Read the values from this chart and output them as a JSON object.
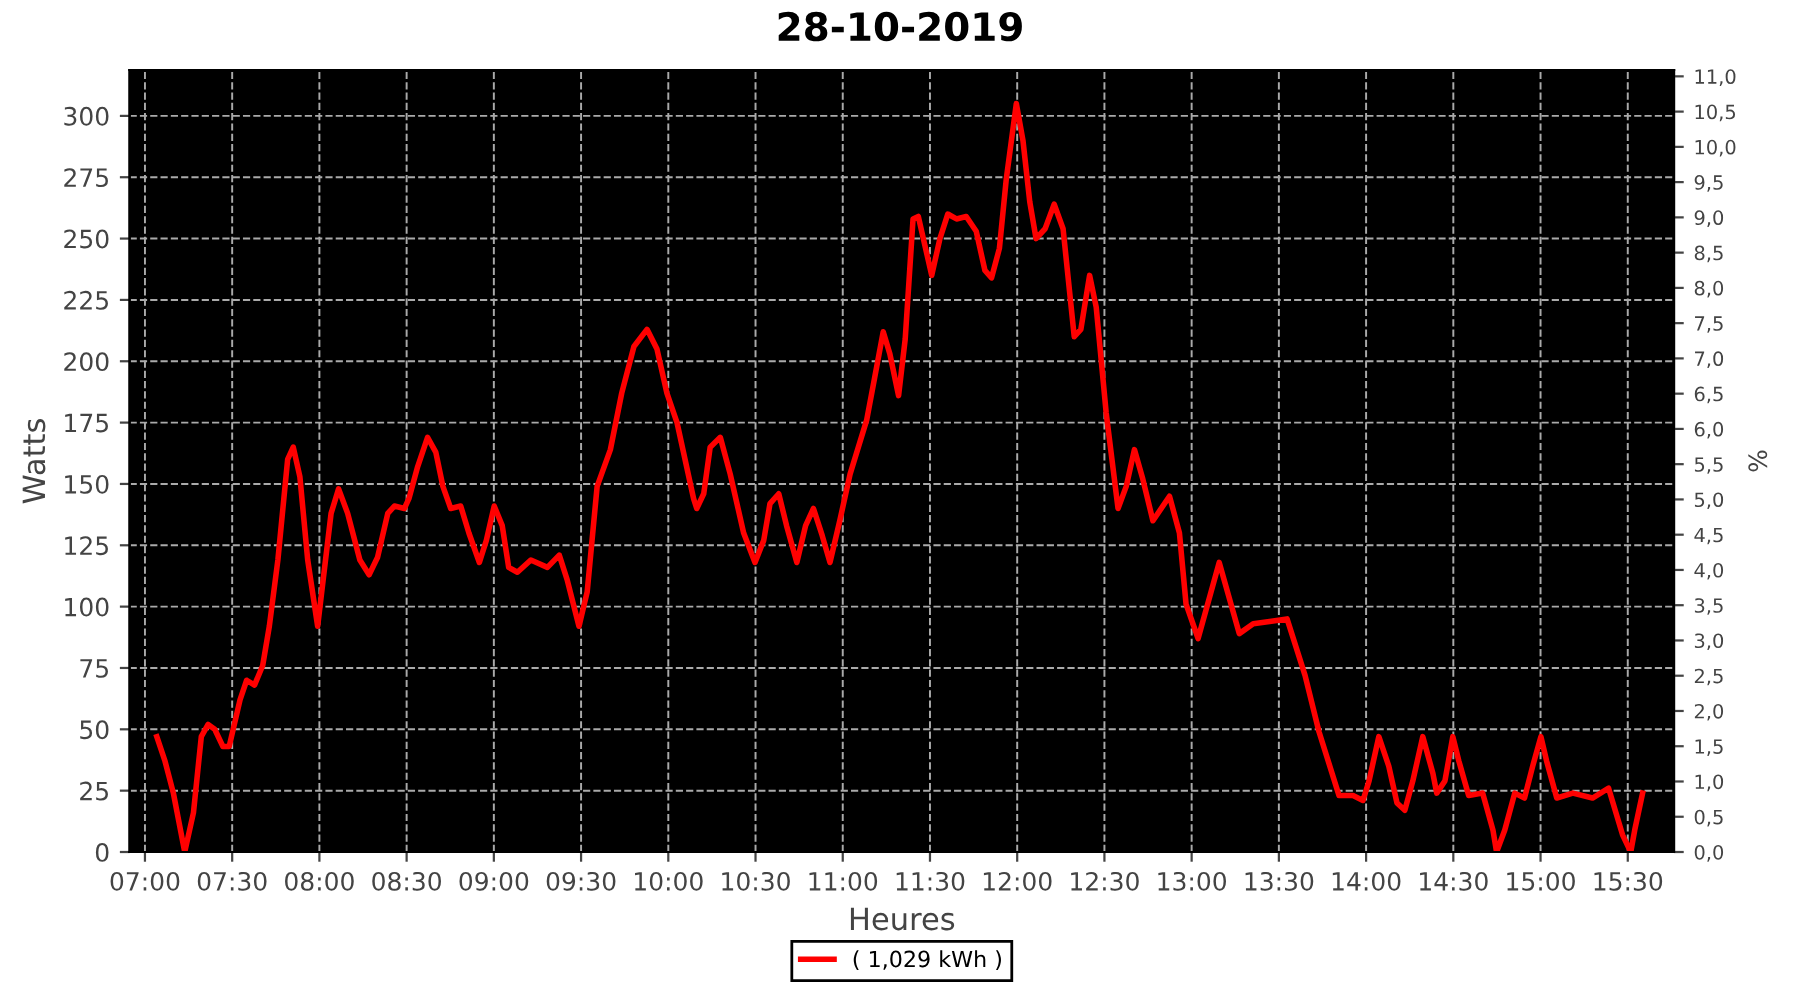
{
  "chart_data": {
    "type": "line",
    "title": "28-10-2019",
    "xlabel": "Heures",
    "ylabel": "Watts",
    "y2label": "%",
    "xlim": [
      6.912,
      15.765
    ],
    "ylim": [
      0,
      318.7
    ],
    "y2lim": [
      0,
      11.09
    ],
    "xticks": [
      {
        "value": 7,
        "label": "07:00"
      },
      {
        "value": 7.5,
        "label": "07:30"
      },
      {
        "value": 8,
        "label": "08:00"
      },
      {
        "value": 8.5,
        "label": "08:30"
      },
      {
        "value": 9,
        "label": "09:00"
      },
      {
        "value": 9.5,
        "label": "09:30"
      },
      {
        "value": 10,
        "label": "10:00"
      },
      {
        "value": 10.5,
        "label": "10:30"
      },
      {
        "value": 11,
        "label": "11:00"
      },
      {
        "value": 11.5,
        "label": "11:30"
      },
      {
        "value": 12,
        "label": "12:00"
      },
      {
        "value": 12.5,
        "label": "12:30"
      },
      {
        "value": 13,
        "label": "13:00"
      },
      {
        "value": 13.5,
        "label": "13:30"
      },
      {
        "value": 14,
        "label": "14:00"
      },
      {
        "value": 14.5,
        "label": "14:30"
      },
      {
        "value": 15,
        "label": "15:00"
      },
      {
        "value": 15.5,
        "label": "15:30"
      }
    ],
    "yticks": [
      0,
      25,
      50,
      75,
      100,
      125,
      150,
      175,
      200,
      225,
      250,
      275,
      300
    ],
    "y2ticks": [
      {
        "value": 0,
        "label": "0,0"
      },
      {
        "value": 0.5,
        "label": "0,5"
      },
      {
        "value": 1,
        "label": "1,0"
      },
      {
        "value": 1.5,
        "label": "1,5"
      },
      {
        "value": 2,
        "label": "2,0"
      },
      {
        "value": 2.5,
        "label": "2,5"
      },
      {
        "value": 3,
        "label": "3,0"
      },
      {
        "value": 3.5,
        "label": "3,5"
      },
      {
        "value": 4,
        "label": "4,0"
      },
      {
        "value": 4.5,
        "label": "4,5"
      },
      {
        "value": 5,
        "label": "5,0"
      },
      {
        "value": 5.5,
        "label": "5,5"
      },
      {
        "value": 6,
        "label": "6,0"
      },
      {
        "value": 6.5,
        "label": "6,5"
      },
      {
        "value": 7,
        "label": "7,0"
      },
      {
        "value": 7.5,
        "label": "7,5"
      },
      {
        "value": 8,
        "label": "8,0"
      },
      {
        "value": 8.5,
        "label": "8,5"
      },
      {
        "value": 9,
        "label": "9,0"
      },
      {
        "value": 9.5,
        "label": "9,5"
      },
      {
        "value": 10,
        "label": "10,0"
      },
      {
        "value": 10.5,
        "label": "10,5"
      },
      {
        "value": 11,
        "label": "11,0"
      }
    ],
    "grid": true,
    "legend": "bottom",
    "line_style": "solid",
    "marker": "none",
    "series": [
      {
        "name": "( 1,029 kWh )",
        "color": "#ff0000",
        "x": [
          7.068,
          7.115,
          7.163,
          7.228,
          7.278,
          7.323,
          7.362,
          7.4,
          7.447,
          7.483,
          7.545,
          7.583,
          7.628,
          7.675,
          7.713,
          7.762,
          7.818,
          7.85,
          7.888,
          7.933,
          7.99,
          8.03,
          8.067,
          8.11,
          8.162,
          8.232,
          8.285,
          8.333,
          8.392,
          8.43,
          8.487,
          8.513,
          8.563,
          8.62,
          8.667,
          8.708,
          8.753,
          8.81,
          8.857,
          8.917,
          8.957,
          9.002,
          9.048,
          9.085,
          9.135,
          9.212,
          9.307,
          9.375,
          9.42,
          9.488,
          9.535,
          9.592,
          9.668,
          9.733,
          9.803,
          9.878,
          9.935,
          9.992,
          10.05,
          10.145,
          10.163,
          10.203,
          10.24,
          10.298,
          10.355,
          10.432,
          10.497,
          10.547,
          10.583,
          10.633,
          10.678,
          10.737,
          10.787,
          10.832,
          10.882,
          10.927,
          10.983,
          11.042,
          11.137,
          11.182,
          11.232,
          11.27,
          11.32,
          11.358,
          11.403,
          11.433,
          11.462,
          11.51,
          11.557,
          11.602,
          11.652,
          11.708,
          11.765,
          11.815,
          11.853,
          11.898,
          11.937,
          11.995,
          12.033,
          12.072,
          12.108,
          12.16,
          12.212,
          12.263,
          12.327,
          12.365,
          12.415,
          12.453,
          12.51,
          12.578,
          12.625,
          12.672,
          12.72,
          12.778,
          12.873,
          12.93,
          12.968,
          13.037,
          13.158,
          13.273,
          13.353,
          13.457,
          13.547,
          13.65,
          13.73,
          13.845,
          13.925,
          13.982,
          14.017,
          14.073,
          14.13,
          14.177,
          14.222,
          14.268,
          14.325,
          14.383,
          14.405,
          14.452,
          14.497,
          14.532,
          14.588,
          14.668,
          14.727,
          14.748,
          14.795,
          14.852,
          14.908,
          14.955,
          15.002,
          15.035,
          15.093,
          15.185,
          15.298,
          15.39,
          15.47,
          15.517,
          15.54,
          15.585
        ],
        "values": [
          47,
          37,
          24,
          0,
          16,
          47,
          52,
          50,
          43,
          43,
          62,
          70,
          68,
          76,
          92,
          119,
          160,
          165,
          153,
          119,
          92,
          116,
          138,
          148,
          138,
          119,
          113,
          120,
          138,
          141,
          140,
          144,
          157,
          169,
          163,
          149,
          140,
          141,
          130,
          118,
          127,
          141,
          133,
          116,
          114,
          119,
          116,
          121,
          111,
          92,
          106,
          149,
          164,
          187,
          206,
          213,
          205,
          187,
          175,
          144,
          140,
          146,
          165,
          169,
          154,
          130,
          118,
          127,
          142,
          146,
          133,
          118,
          133,
          140,
          129,
          118,
          135,
          154,
          176,
          193,
          212,
          203,
          186,
          209,
          258,
          259,
          250,
          235,
          250,
          260,
          258,
          259,
          253,
          237,
          234,
          246,
          274,
          305,
          290,
          265,
          250,
          254,
          264,
          254,
          210,
          213,
          235,
          222,
          179,
          140,
          149,
          164,
          152,
          135,
          145,
          130,
          101,
          87,
          118,
          89,
          93,
          94,
          95,
          72,
          49,
          23,
          23,
          21,
          29,
          47,
          35,
          20,
          17,
          29,
          47,
          32,
          24,
          29,
          47,
          37,
          23,
          24,
          9,
          0,
          9,
          24,
          22,
          35,
          47,
          37,
          22,
          24,
          22,
          26,
          7,
          0,
          9,
          24
        ]
      }
    ]
  }
}
